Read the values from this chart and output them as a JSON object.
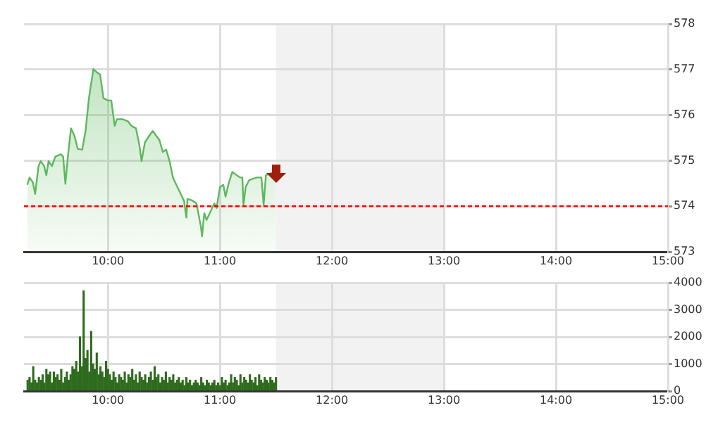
{
  "chart_data": [
    {
      "type": "area",
      "xlim": [
        9.25,
        15
      ],
      "xticks": [
        {
          "value": 10,
          "label": "10:00"
        },
        {
          "value": 11,
          "label": "11:00"
        },
        {
          "value": 12,
          "label": "12:00"
        },
        {
          "value": 13,
          "label": "13:00"
        },
        {
          "value": 14,
          "label": "14:00"
        },
        {
          "value": 15,
          "label": "15:00"
        }
      ],
      "ylim": [
        573,
        578
      ],
      "yticks": [
        573,
        574,
        575,
        576,
        577,
        578
      ],
      "grid": true,
      "series": [
        {
          "color": "#5cb85c",
          "x": [
            9.28,
            9.3,
            9.33,
            9.35,
            9.38,
            9.4,
            9.43,
            9.45,
            9.47,
            9.5,
            9.53,
            9.58,
            9.6,
            9.62,
            9.64,
            9.67,
            9.7,
            9.73,
            9.77,
            9.8,
            9.83,
            9.87,
            9.9,
            9.93,
            9.96,
            10.0,
            10.03,
            10.06,
            10.08,
            10.13,
            10.18,
            10.21,
            10.25,
            10.28,
            10.3,
            10.33,
            10.37,
            10.4,
            10.43,
            10.46,
            10.49,
            10.52,
            10.55,
            10.58,
            10.62,
            10.65,
            10.68,
            10.7,
            10.71,
            10.75,
            10.79,
            10.83,
            10.84,
            10.86,
            10.88,
            10.9,
            10.93,
            10.95,
            10.97,
            11.0,
            11.03,
            11.05,
            11.08,
            11.11,
            11.15,
            11.18,
            11.2,
            11.21,
            11.23,
            11.26,
            11.29,
            11.33,
            11.37,
            11.39,
            11.41,
            11.44,
            11.48,
            11.5
          ],
          "values": [
            574.47,
            574.63,
            574.52,
            574.27,
            574.88,
            574.99,
            574.88,
            574.68,
            574.99,
            574.88,
            575.09,
            575.14,
            575.09,
            574.49,
            575.04,
            575.71,
            575.55,
            575.26,
            575.24,
            575.65,
            576.37,
            577.01,
            576.94,
            576.89,
            576.37,
            576.32,
            576.32,
            575.76,
            575.91,
            575.91,
            575.86,
            575.76,
            575.71,
            575.35,
            574.99,
            575.4,
            575.55,
            575.65,
            575.55,
            575.45,
            575.19,
            575.24,
            574.99,
            574.63,
            574.42,
            574.27,
            574.11,
            573.75,
            574.16,
            574.13,
            574.06,
            573.55,
            573.34,
            573.85,
            573.7,
            573.8,
            573.96,
            574.06,
            573.96,
            574.42,
            574.47,
            574.21,
            574.52,
            574.75,
            574.68,
            574.63,
            574.63,
            574.03,
            574.42,
            574.57,
            574.6,
            574.63,
            574.63,
            574.03,
            574.68,
            574.71,
            574.74,
            574.68
          ]
        }
      ],
      "ref_lines": [
        {
          "axis": "y",
          "value": 574,
          "color": "#ff0000",
          "line_style": "dashed"
        }
      ],
      "bands": [
        {
          "axis": "x",
          "from": 11.5,
          "to": 13,
          "color": "#f2f2f2"
        }
      ]
    },
    {
      "type": "bar",
      "xlim": [
        9.25,
        15
      ],
      "xticks": [
        {
          "value": 10,
          "label": "10:00"
        },
        {
          "value": 11,
          "label": "11:00"
        },
        {
          "value": 12,
          "label": "12:00"
        },
        {
          "value": 13,
          "label": "13:00"
        },
        {
          "value": 14,
          "label": "14:00"
        },
        {
          "value": 15,
          "label": "15:00"
        }
      ],
      "ylim": [
        0,
        4000
      ],
      "yticks": [
        0,
        1000,
        2000,
        3000,
        4000
      ],
      "grid": true,
      "series": [
        {
          "color": "#2e6b1e",
          "x": [
            9.283,
            9.3,
            9.317,
            9.333,
            9.35,
            9.367,
            9.383,
            9.4,
            9.417,
            9.433,
            9.45,
            9.467,
            9.483,
            9.5,
            9.517,
            9.533,
            9.55,
            9.567,
            9.583,
            9.6,
            9.617,
            9.633,
            9.65,
            9.667,
            9.683,
            9.7,
            9.717,
            9.733,
            9.75,
            9.767,
            9.783,
            9.8,
            9.817,
            9.833,
            9.85,
            9.867,
            9.883,
            9.9,
            9.917,
            9.933,
            9.95,
            9.967,
            9.983,
            10.0,
            10.017,
            10.033,
            10.05,
            10.067,
            10.083,
            10.1,
            10.117,
            10.133,
            10.15,
            10.167,
            10.183,
            10.2,
            10.217,
            10.233,
            10.25,
            10.267,
            10.283,
            10.3,
            10.317,
            10.333,
            10.35,
            10.367,
            10.383,
            10.4,
            10.417,
            10.433,
            10.45,
            10.467,
            10.483,
            10.5,
            10.517,
            10.533,
            10.55,
            10.567,
            10.583,
            10.6,
            10.617,
            10.633,
            10.65,
            10.667,
            10.683,
            10.7,
            10.717,
            10.733,
            10.75,
            10.767,
            10.783,
            10.8,
            10.817,
            10.833,
            10.85,
            10.867,
            10.883,
            10.9,
            10.917,
            10.933,
            10.95,
            10.967,
            10.983,
            11.0,
            11.017,
            11.033,
            11.05,
            11.067,
            11.083,
            11.1,
            11.117,
            11.133,
            11.15,
            11.167,
            11.183,
            11.2,
            11.217,
            11.233,
            11.25,
            11.267,
            11.283,
            11.3,
            11.317,
            11.333,
            11.35,
            11.367,
            11.383,
            11.4,
            11.417,
            11.433,
            11.45,
            11.467,
            11.483,
            11.5
          ],
          "values": [
            400,
            500,
            300,
            900,
            400,
            300,
            500,
            400,
            600,
            300,
            800,
            600,
            700,
            300,
            700,
            500,
            600,
            400,
            800,
            300,
            500,
            700,
            400,
            600,
            900,
            800,
            1100,
            700,
            2000,
            900,
            3700,
            1200,
            1500,
            700,
            2200,
            1000,
            800,
            1400,
            600,
            900,
            700,
            500,
            1100,
            800,
            600,
            400,
            700,
            500,
            300,
            600,
            500,
            400,
            700,
            300,
            600,
            500,
            800,
            400,
            600,
            300,
            700,
            500,
            400,
            600,
            300,
            500,
            700,
            400,
            900,
            500,
            600,
            300,
            500,
            400,
            700,
            300,
            500,
            400,
            600,
            300,
            400,
            500,
            300,
            400,
            200,
            500,
            300,
            400,
            200,
            300,
            400,
            300,
            200,
            500,
            300,
            200,
            400,
            300,
            200,
            300,
            400,
            200,
            300,
            200,
            500,
            300,
            400,
            200,
            300,
            600,
            300,
            500,
            400,
            200,
            600,
            300,
            500,
            400,
            300,
            600,
            400,
            300,
            500,
            200,
            600,
            400,
            300,
            500,
            400,
            300,
            500,
            400,
            300,
            500
          ]
        }
      ],
      "bands": [
        {
          "axis": "x",
          "from": 11.5,
          "to": 13,
          "color": "#f2f2f2"
        }
      ]
    }
  ]
}
